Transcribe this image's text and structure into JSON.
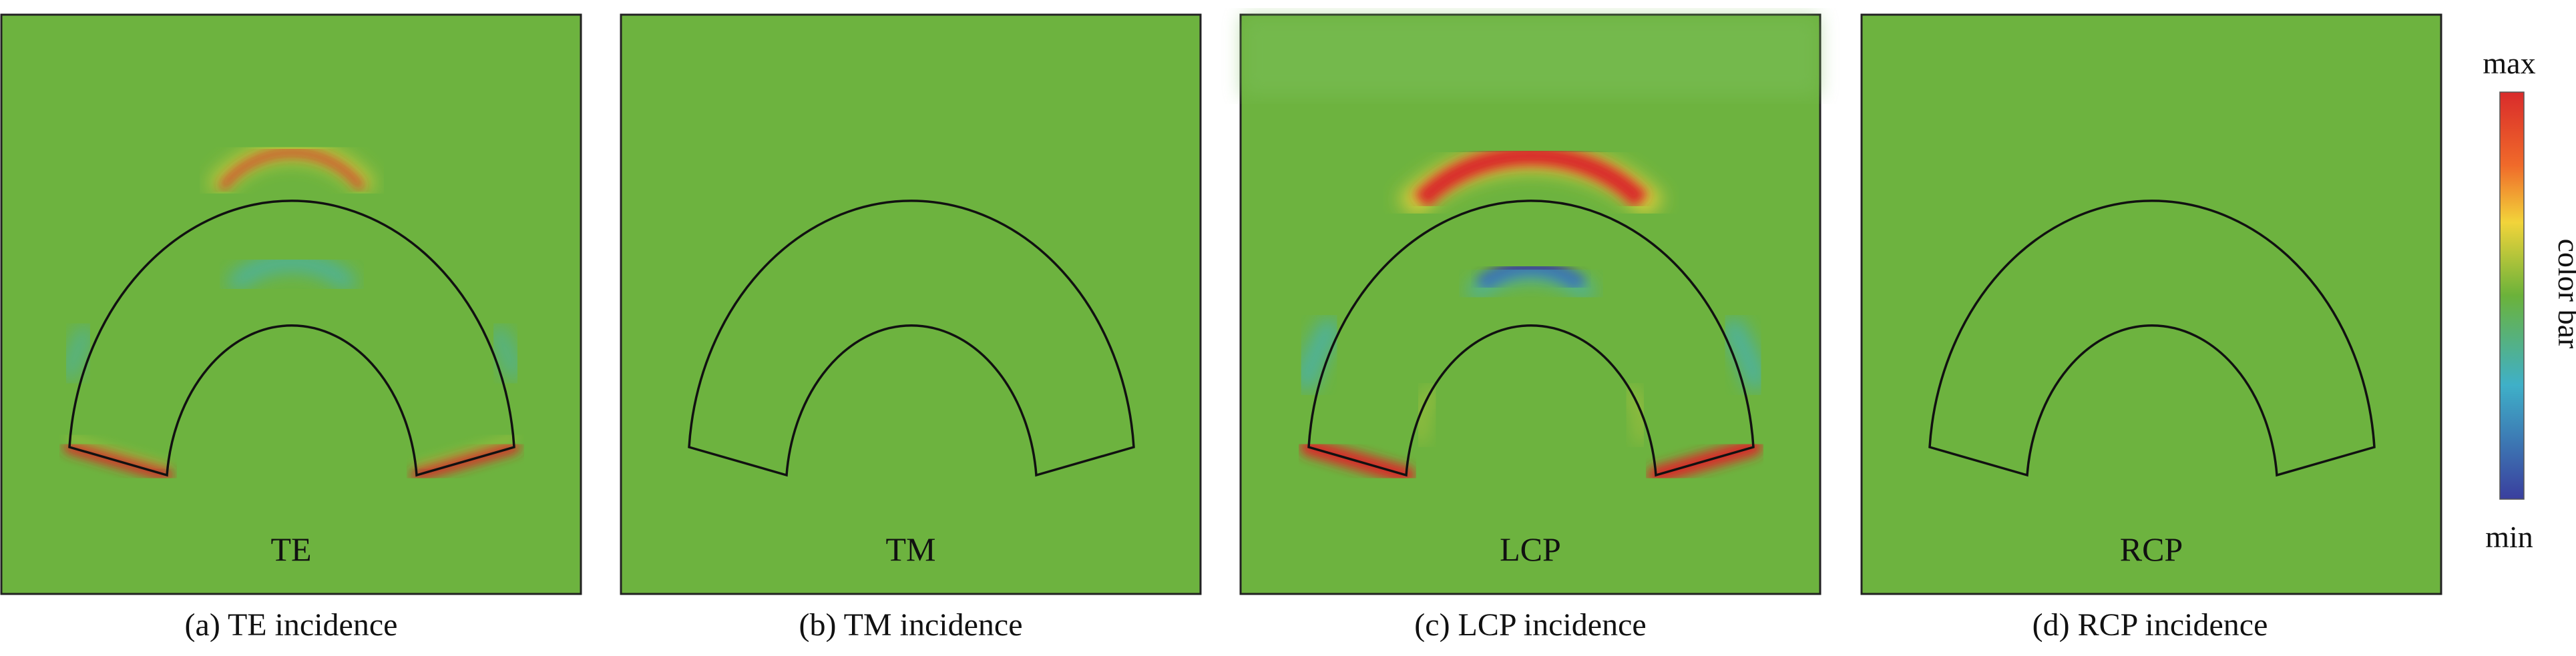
{
  "panels": [
    {
      "label": "TE",
      "caption": "(a)  TE incidence",
      "field": "te"
    },
    {
      "label": "TM",
      "caption": "(b)  TM incidence",
      "field": "none"
    },
    {
      "label": "LCP",
      "caption": "(c)  LCP incidence",
      "field": "lcp"
    },
    {
      "label": "RCP",
      "caption": "(d)  RCP incidence",
      "field": "none"
    }
  ],
  "colorbar": {
    "max_label": "max",
    "min_label": "min",
    "title": "color bar",
    "colors": [
      "#d92b2b",
      "#f06a2a",
      "#f2d43a",
      "#6bb23a",
      "#3fb0c8",
      "#3a3f9e"
    ]
  },
  "colors": {
    "background_green": "#6db33f",
    "outline": "#111111"
  }
}
